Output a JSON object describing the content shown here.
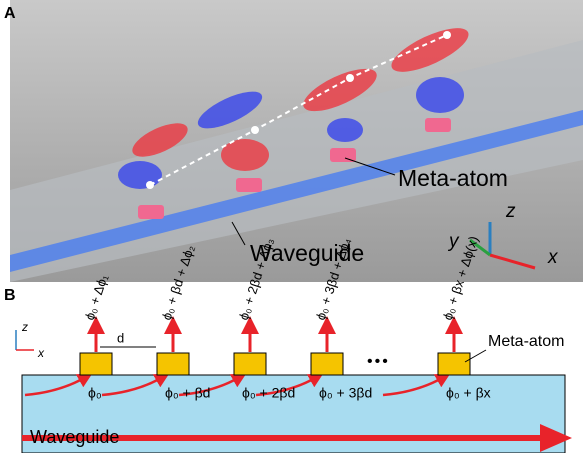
{
  "panel_a": {
    "label": "A",
    "meta_atom": "Meta-atom",
    "waveguide": "Waveguide",
    "axes": [
      "z",
      "y",
      "x"
    ]
  },
  "panel_b": {
    "label": "B",
    "axes": [
      "z",
      "x"
    ],
    "spacing": "d",
    "phase_labels": [
      "ϕ₀ + Δϕ₁",
      "ϕ₀ + βd + Δϕ₂",
      "ϕ₀ + 2βd + Δϕ₃",
      "ϕ₀ + 3βd + Δϕ₄",
      "ϕ₀ + βx + Δϕ(x)"
    ],
    "dots": "•••",
    "meta_atom": "Meta-atom",
    "waveguide_phases": [
      "ϕ₀",
      "ϕ₀ + βd",
      "ϕ₀ + 2βd",
      "ϕ₀ + 3βd",
      "ϕ₀ + βx"
    ],
    "waveguide": "Waveguide"
  }
}
